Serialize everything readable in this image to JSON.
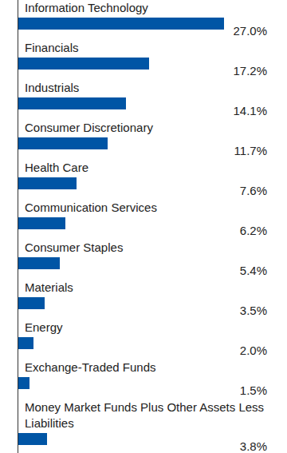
{
  "chart_data": {
    "type": "bar",
    "orientation": "horizontal",
    "categories": [
      "Information Technology",
      "Financials",
      "Industrials",
      "Consumer Discretionary",
      "Health Care",
      "Communication Services",
      "Consumer Staples",
      "Materials",
      "Energy",
      "Exchange-Traded Funds",
      "Money Market Funds Plus Other Assets Less Liabilities"
    ],
    "values": [
      27.0,
      17.2,
      14.1,
      11.7,
      7.6,
      6.2,
      5.4,
      3.5,
      2.0,
      1.5,
      3.8
    ],
    "value_labels": [
      "27.0%",
      "17.2%",
      "14.1%",
      "11.7%",
      "7.6%",
      "6.2%",
      "5.4%",
      "3.5%",
      "2.0%",
      "1.5%",
      "3.8%"
    ],
    "color": "#0055a5",
    "xlim": [
      0,
      27
    ],
    "data_labels": true,
    "tick_labels": false
  }
}
